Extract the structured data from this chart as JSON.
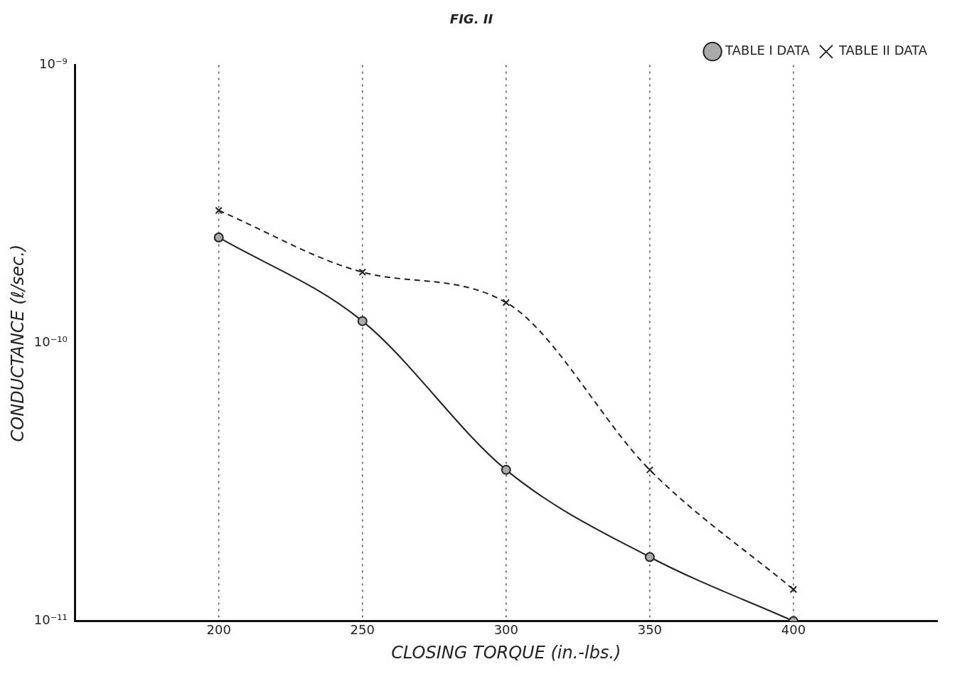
{
  "chart_data": {
    "type": "line",
    "title": "FIG. II",
    "xlabel": "CLOSING TORQUE (in.-lbs.)",
    "ylabel": "CONDUCTANCE (ℓ/sec.)",
    "x": [
      200,
      250,
      300,
      350,
      400
    ],
    "series": [
      {
        "name": "TABLE I DATA",
        "color": "#222222",
        "values": [
          2.4e-10,
          1.2e-10,
          3.5e-11,
          1.7e-11,
          1e-11
        ],
        "marker": "circle",
        "line_style": "solid"
      },
      {
        "name": "TABLE II DATA",
        "color": "#222222",
        "values": [
          3e-10,
          1.8e-10,
          1.4e-10,
          3.5e-11,
          1.3e-11
        ],
        "marker": "cross",
        "line_style": "dashed"
      }
    ],
    "xlim": [
      150,
      450
    ],
    "xticks": [
      200,
      250,
      300,
      350,
      400
    ],
    "ylim": [
      1e-11,
      1e-09
    ],
    "yticks": [
      {
        "value": 1e-11,
        "label": "10⁻¹¹"
      },
      {
        "value": 1e-10,
        "label": "10⁻¹⁰"
      },
      {
        "value": 1e-09,
        "label": "10⁻⁹"
      }
    ],
    "log": "y",
    "grid": "x",
    "legend": "top right"
  }
}
